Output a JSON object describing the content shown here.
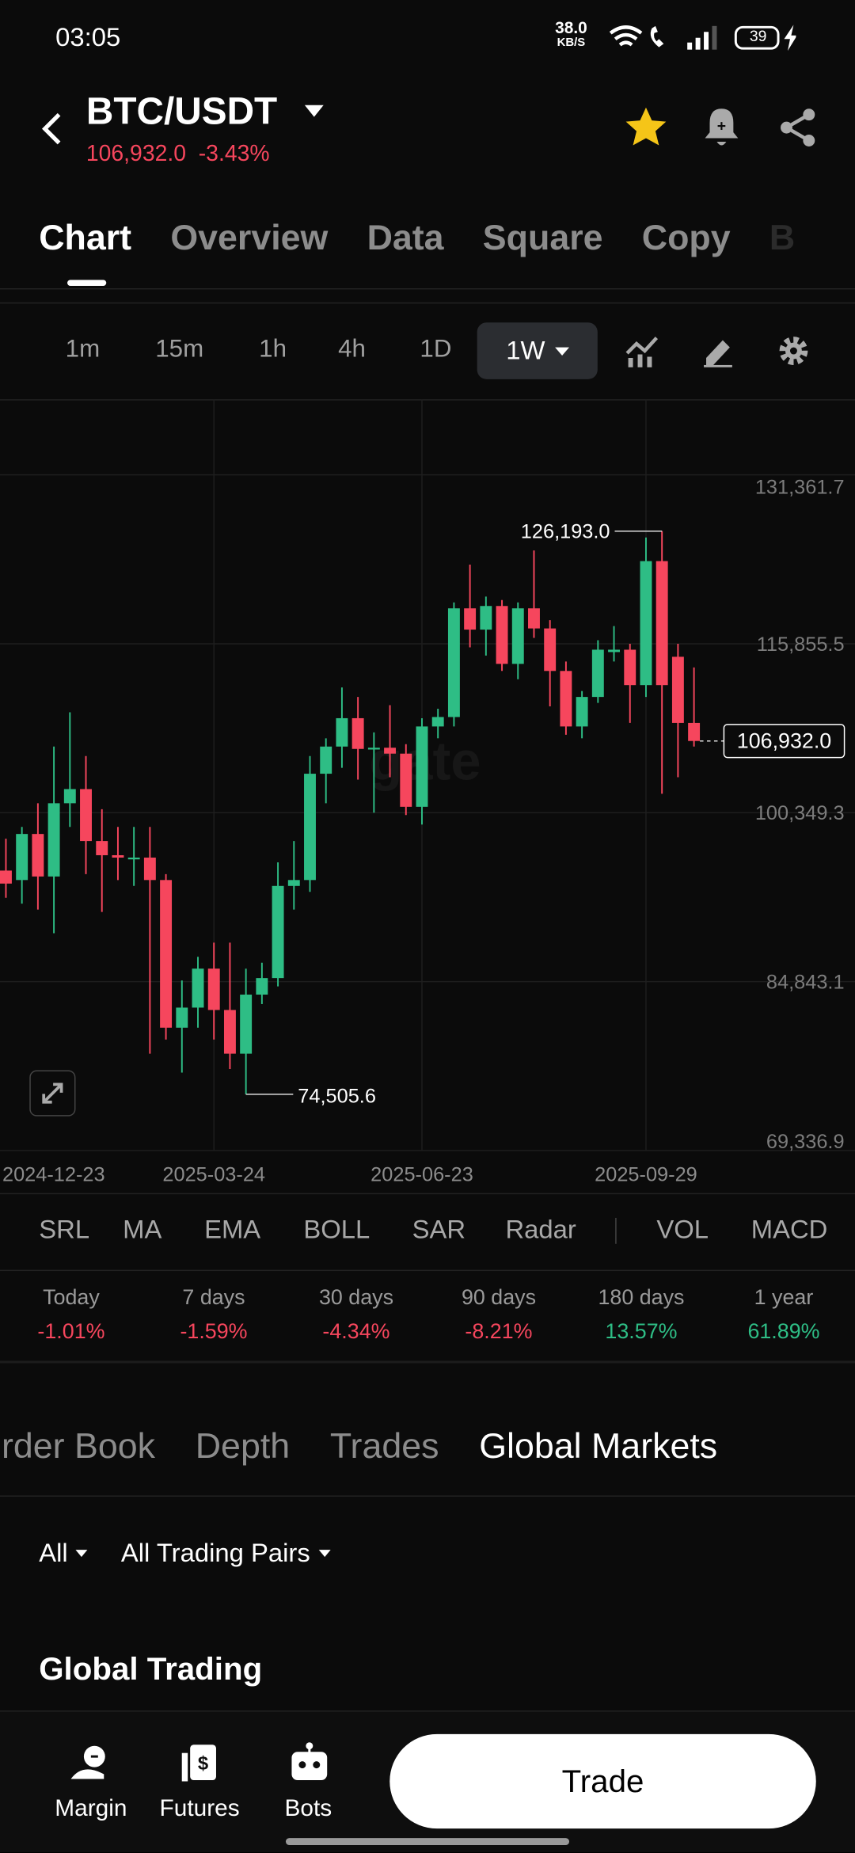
{
  "status_bar": {
    "time": "03:05",
    "speed": "38.0",
    "speed_unit": "KB/S",
    "battery": "39"
  },
  "header": {
    "pair": "BTC/USDT",
    "price": "106,932.0",
    "change": "-3.43%"
  },
  "tabs": {
    "items": [
      "Chart",
      "Overview",
      "Data",
      "Square",
      "Copy",
      "B"
    ],
    "selected": "Chart"
  },
  "intervals": {
    "items": [
      "1m",
      "15m",
      "1h",
      "4h",
      "1D",
      "1W"
    ],
    "selected": "1W"
  },
  "chart": {
    "type": "candlestick",
    "watermark": "gate",
    "up_color": "#2ebd85",
    "down_color": "#f6465d",
    "categories": [
      "2024-12-23",
      null,
      null,
      null,
      null,
      null,
      null,
      null,
      null,
      null,
      null,
      null,
      null,
      "2025-03-24",
      null,
      null,
      null,
      null,
      null,
      null,
      null,
      null,
      null,
      null,
      null,
      null,
      "2025-06-23",
      null,
      null,
      null,
      null,
      null,
      null,
      null,
      null,
      null,
      null,
      null,
      null,
      null,
      "2025-09-29",
      null,
      null,
      null
    ],
    "open": [
      95035,
      94168,
      98396,
      94493,
      101216,
      102517,
      97746,
      96445,
      96119,
      96228,
      94168,
      80614,
      82457,
      86035,
      82240,
      78228,
      83650,
      85168,
      93625,
      94168,
      103926,
      106420,
      109023,
      106203,
      106312,
      105770,
      100890,
      108264,
      109131,
      119107,
      117155,
      119323,
      114010,
      119107,
      117263,
      113360,
      108264,
      110974,
      115095,
      115311,
      112059,
      123444,
      114661,
      108589
    ],
    "high": [
      97963,
      99047,
      101216,
      106420,
      109565,
      105553,
      100673,
      99047,
      99047,
      99047,
      94710,
      84951,
      87120,
      88421,
      88421,
      86035,
      86578,
      95794,
      97746,
      105553,
      107179,
      111842,
      110974,
      107721,
      110215,
      106637,
      109023,
      109890,
      119649,
      123118,
      120191,
      119866,
      119649,
      124420,
      118022,
      114227,
      111516,
      116179,
      117480,
      115854,
      125612,
      126193,
      115854,
      113685
    ],
    "low": [
      92541,
      91999,
      91457,
      89288,
      99047,
      94710,
      91240,
      94168,
      93625,
      78228,
      79530,
      76494,
      80614,
      79530,
      76819,
      74505.6,
      82782,
      84409,
      91457,
      93083,
      101216,
      104468,
      103384,
      100348,
      103601,
      100131,
      99264,
      107179,
      108264,
      115528,
      114769,
      113360,
      112601,
      116396,
      110107,
      107505,
      107179,
      110432,
      114227,
      108589,
      110974,
      102083,
      103601,
      106420
    ],
    "close": [
      93842,
      98396,
      94493,
      101216,
      102517,
      97746,
      96445,
      96228,
      96228,
      94168,
      80614,
      82457,
      86035,
      82240,
      78228,
      83650,
      85168,
      93625,
      94168,
      103926,
      106420,
      109023,
      106203,
      106312,
      105770,
      100890,
      108264,
      109131,
      119107,
      117155,
      119323,
      114010,
      119107,
      117263,
      113360,
      108264,
      110974,
      115311,
      115311,
      112059,
      123444,
      112059,
      108589,
      106932.0
    ],
    "ylim": [
      69336.9,
      138299
    ],
    "yticks": [
      {
        "value": 69336.9,
        "label": "69,336.9"
      },
      {
        "value": 84843.1,
        "label": "84,843.1"
      },
      {
        "value": 100349.3,
        "label": "100,349.3"
      },
      {
        "value": 115855.5,
        "label": "115,855.5"
      },
      {
        "value": 131361.7,
        "label": "131,361.7"
      }
    ],
    "max_label": "126,193.0",
    "min_label": "74,505.6",
    "last_label": "106,932.0",
    "grid": true
  },
  "indicators": [
    "SRL",
    "MA",
    "EMA",
    "BOLL",
    "SAR",
    "Radar",
    "VOL",
    "MACD"
  ],
  "performance": [
    {
      "period": "Today",
      "change": "-1.01%"
    },
    {
      "period": "7 days",
      "change": "-1.59%"
    },
    {
      "period": "30 days",
      "change": "-4.34%"
    },
    {
      "period": "90 days",
      "change": "-8.21%"
    },
    {
      "period": "180 days",
      "change": "13.57%"
    },
    {
      "period": "1 year",
      "change": "61.89%"
    }
  ],
  "market_tabs": {
    "items": [
      "Order Book",
      "Depth",
      "Trades",
      "Global Markets"
    ],
    "selected": "Global Markets"
  },
  "filters": [
    "All",
    "All Trading Pairs"
  ],
  "section_title": "Global Trading",
  "bottom_nav": [
    "Margin",
    "Futures",
    "Bots"
  ],
  "trade_button": "Trade"
}
